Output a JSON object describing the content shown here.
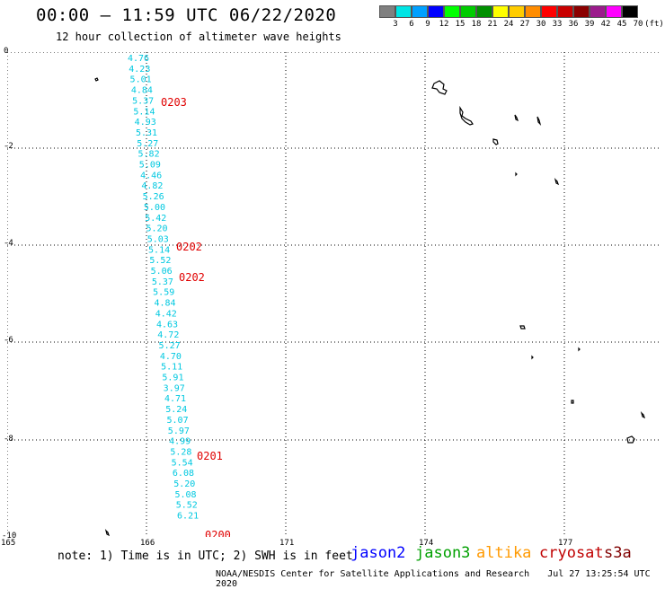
{
  "header": {
    "title": "00:00 – 11:59 UTC 06/22/2020",
    "subtitle": "12 hour collection of altimeter wave heights"
  },
  "colorbar": {
    "labels": [
      "3",
      "6",
      "9",
      "12",
      "15",
      "18",
      "21",
      "24",
      "27",
      "30",
      "33",
      "36",
      "39",
      "42",
      "45",
      "70"
    ],
    "unit": "(ft)",
    "colors": [
      "#808080",
      "#00e5e5",
      "#00a0ff",
      "#0000ff",
      "#00ff00",
      "#00cc00",
      "#009000",
      "#ffff00",
      "#ffcc00",
      "#ff8c00",
      "#ff0000",
      "#c80000",
      "#8b0000",
      "#9b1b8c",
      "#ff00ff",
      "#000000"
    ]
  },
  "axes": {
    "x_ticks": [
      "165",
      "166",
      "171",
      "174",
      "177"
    ],
    "y_ticks": [
      "0",
      "-2",
      "-4",
      "-6",
      "-8",
      "-10"
    ]
  },
  "swh_labels": [
    "4.76",
    "4.23",
    "5.01",
    "4.84",
    "5.37",
    "5.14",
    "4.93",
    "5.31",
    "5.27",
    "5.82",
    "5.09",
    "4.46",
    "4.82",
    "5.26",
    "5.00",
    "5.42",
    "5.20",
    "5.03",
    "5.14",
    "5.52",
    "5.06",
    "5.37",
    "5.59",
    "4.84",
    "4.42",
    "4.63",
    "4.72",
    "5.27",
    "4.70",
    "5.11",
    "5.91",
    "3.97",
    "4.71",
    "5.24",
    "5.07",
    "5.97",
    "4.99",
    "5.28",
    "5.54",
    "6.08",
    "5.20",
    "5.08",
    "5.52",
    "6.21"
  ],
  "time_labels": [
    {
      "text": "0203"
    },
    {
      "text": "0202"
    },
    {
      "text": "0202"
    },
    {
      "text": "0201"
    },
    {
      "text": "0200"
    }
  ],
  "note": "note: 1) Time is in UTC; 2) SWH is in feet",
  "legend": [
    {
      "name": "jason2",
      "color": "#0000ff"
    },
    {
      "name": "jason3",
      "color": "#00a000"
    },
    {
      "name": "altika",
      "color": "#ff9900"
    },
    {
      "name": "cryosat",
      "color": "#c00000"
    },
    {
      "name": "s3a",
      "color": "#800000"
    }
  ],
  "footer": {
    "credit": "NOAA/NESDIS Center for Satellite Applications and Research",
    "timestamp": "Jul 27 13:25:54 UTC 2020"
  }
}
